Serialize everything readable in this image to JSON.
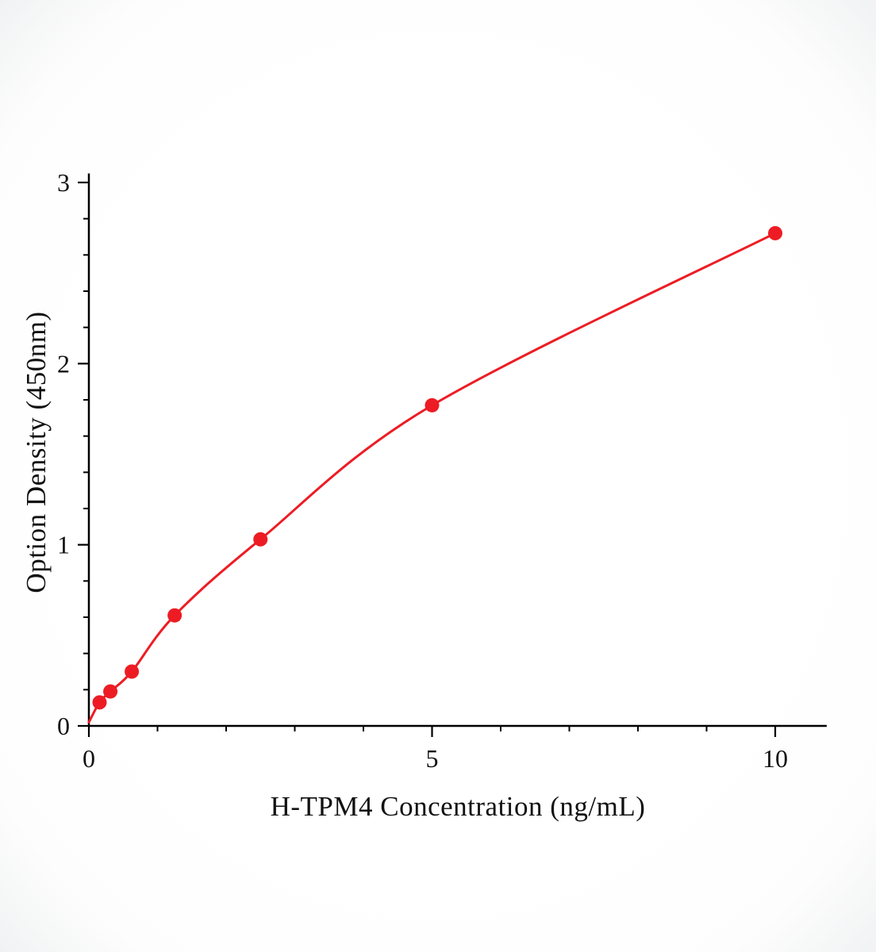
{
  "chart_data": {
    "type": "line",
    "title": "",
    "xlabel": "H-TPM4 Concentration (ng/mL)",
    "ylabel": "Option Density (450nm)",
    "x_range": [
      0,
      10.75
    ],
    "y_range": [
      0,
      3.05
    ],
    "x_major_ticks": [
      0,
      5,
      10
    ],
    "x_minor_ticks": [
      1,
      2,
      3,
      4,
      6,
      7,
      8,
      9
    ],
    "y_major_ticks": [
      0,
      1,
      2,
      3
    ],
    "y_minor_ticks": [
      0.2,
      0.4,
      0.6,
      0.8,
      1.2,
      1.4,
      1.6,
      1.8,
      2.2,
      2.4,
      2.6,
      2.8
    ],
    "grid": false,
    "legend_position": "none",
    "curve_color": "#ed1c24",
    "point_color": "#ed1c24",
    "axis_color": "#000000",
    "tick_label_color": "#111111",
    "points": [
      {
        "x": 0,
        "y": 0.02,
        "marker": false
      },
      {
        "x": 0.156,
        "y": 0.13,
        "marker": true
      },
      {
        "x": 0.313,
        "y": 0.19,
        "marker": true
      },
      {
        "x": 0.625,
        "y": 0.3,
        "marker": true
      },
      {
        "x": 1.25,
        "y": 0.61,
        "marker": true
      },
      {
        "x": 2.5,
        "y": 1.03,
        "marker": true
      },
      {
        "x": 5,
        "y": 1.77,
        "marker": true
      },
      {
        "x": 10,
        "y": 2.72,
        "marker": true
      }
    ]
  }
}
